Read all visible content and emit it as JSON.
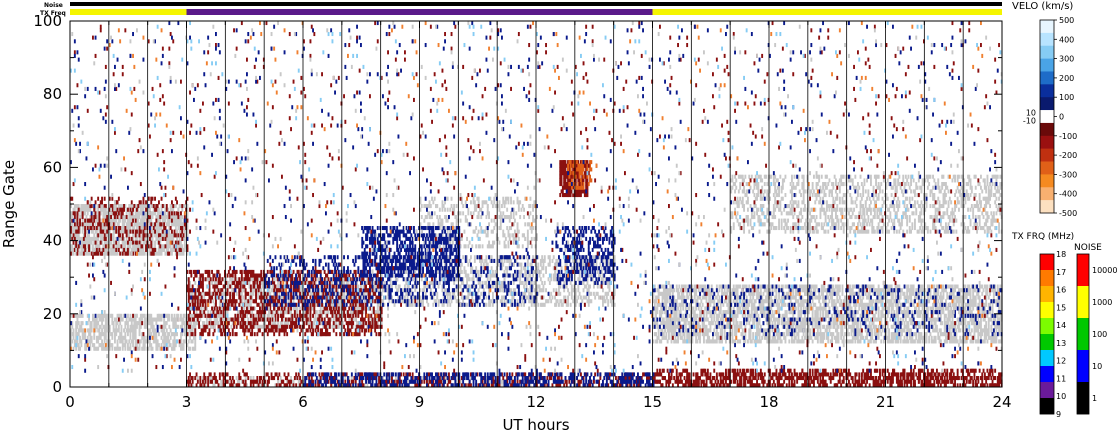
{
  "chart_data": {
    "type": "heatmap",
    "title": "",
    "xlabel": "UT hours",
    "ylabel": "Range Gate",
    "xlim": [
      0,
      24
    ],
    "ylim": [
      0,
      100
    ],
    "x_ticks": [
      "0",
      "3",
      "6",
      "9",
      "12",
      "15",
      "18",
      "21",
      "24"
    ],
    "y_ticks": [
      "0",
      "20",
      "40",
      "60",
      "80",
      "100"
    ],
    "top_strips": {
      "noise_label": "Noise",
      "txfreq_label": "TX Freq",
      "txfreq_segments": [
        {
          "start": 0,
          "end": 3,
          "color": "#f5f500"
        },
        {
          "start": 3,
          "end": 15,
          "color": "#5a1a8a"
        },
        {
          "start": 15,
          "end": 24,
          "color": "#f5f500"
        }
      ]
    },
    "velocity_colorbar": {
      "title": "VELO (km/s)",
      "labels": [
        "500",
        "400",
        "300",
        "200",
        "100",
        "0",
        "-100",
        "-200",
        "-300",
        "-400",
        "-500"
      ],
      "inner_labels": [
        "10",
        "-10"
      ],
      "colors": [
        "#e8f6ff",
        "#b8e4ff",
        "#86ccf4",
        "#4aa4e6",
        "#1e6cc8",
        "#0a2e9c",
        "#0a1a6e",
        "#ffffff",
        "#6a0a0a",
        "#9a1010",
        "#c03010",
        "#e06018",
        "#f58a20",
        "#f8b070",
        "#fce0c0"
      ]
    },
    "txfreq_colorbar": {
      "title": "TX FRQ (MHz)",
      "labels": [
        "18",
        "17",
        "16",
        "15",
        "14",
        "13",
        "12",
        "11",
        "10",
        "9"
      ],
      "colors": [
        "#ff0000",
        "#ff7a00",
        "#ffb400",
        "#ffff00",
        "#7cfc00",
        "#00c800",
        "#00c8ff",
        "#0000ff",
        "#6a1a9a",
        "#000000"
      ]
    },
    "noise_colorbar": {
      "title": "NOISE",
      "labels": [
        "10000",
        "1000",
        "100",
        "10",
        "1"
      ],
      "colors": [
        "#ff0000",
        "#ffff00",
        "#00c800",
        "#0000ff",
        "#000000"
      ]
    },
    "scan_boundaries_hours": [
      1,
      2,
      3,
      4,
      5,
      6,
      7,
      8,
      9,
      10,
      11,
      12,
      13,
      14,
      15,
      16,
      17,
      18,
      19,
      20,
      21,
      22,
      23
    ],
    "echo_regions": [
      {
        "kind": "ground",
        "color": "#c8c8c8",
        "t": [
          0,
          3
        ],
        "gate": [
          36,
          50
        ],
        "density": 0.75
      },
      {
        "kind": "ground",
        "color": "#c8c8c8",
        "t": [
          0,
          3.2
        ],
        "gate": [
          10,
          20
        ],
        "density": 0.6
      },
      {
        "kind": "ground",
        "color": "#c8c8c8",
        "t": [
          3,
          8
        ],
        "gate": [
          16,
          30
        ],
        "density": 0.5
      },
      {
        "kind": "ground",
        "color": "#c8c8c8",
        "t": [
          8,
          14
        ],
        "gate": [
          22,
          36
        ],
        "density": 0.35
      },
      {
        "kind": "ground",
        "color": "#c8c8c8",
        "t": [
          9,
          12
        ],
        "gate": [
          38,
          52
        ],
        "density": 0.3
      },
      {
        "kind": "ground",
        "color": "#c8c8c8",
        "t": [
          15,
          24
        ],
        "gate": [
          12,
          28
        ],
        "density": 0.6
      },
      {
        "kind": "ground",
        "color": "#c8c8c8",
        "t": [
          17,
          24
        ],
        "gate": [
          42,
          58
        ],
        "density": 0.35
      },
      {
        "kind": "ground",
        "color": "#c8c8c8",
        "t": [
          3,
          12
        ],
        "gate": [
          0,
          3
        ],
        "density": 0.25
      },
      {
        "kind": "away",
        "color": "#8b1010",
        "t": [
          0,
          3
        ],
        "gate": [
          36,
          52
        ],
        "density": 0.22
      },
      {
        "kind": "away",
        "color": "#8b1010",
        "t": [
          3,
          8
        ],
        "gate": [
          14,
          32
        ],
        "density": 0.4
      },
      {
        "kind": "away",
        "color": "#8b1010",
        "t": [
          12.6,
          13.3
        ],
        "gate": [
          52,
          62
        ],
        "density": 0.85
      },
      {
        "kind": "away",
        "color": "#e06018",
        "t": [
          12.8,
          13.4
        ],
        "gate": [
          54,
          62
        ],
        "density": 0.35
      },
      {
        "kind": "away",
        "color": "#8b1010",
        "t": [
          3,
          24
        ],
        "gate": [
          0,
          4
        ],
        "density": 0.35
      },
      {
        "kind": "away",
        "color": "#8b1010",
        "t": [
          15,
          24
        ],
        "gate": [
          0,
          5
        ],
        "density": 0.35
      },
      {
        "kind": "toward",
        "color": "#0a1a8c",
        "t": [
          7.5,
          10
        ],
        "gate": [
          30,
          44
        ],
        "density": 0.5
      },
      {
        "kind": "toward",
        "color": "#0a1a8c",
        "t": [
          5,
          12
        ],
        "gate": [
          22,
          36
        ],
        "density": 0.2
      },
      {
        "kind": "toward",
        "color": "#0a1a8c",
        "t": [
          12.5,
          14
        ],
        "gate": [
          28,
          44
        ],
        "density": 0.35
      },
      {
        "kind": "toward",
        "color": "#0a1a8c",
        "t": [
          6,
          15
        ],
        "gate": [
          0,
          4
        ],
        "density": 0.4
      },
      {
        "kind": "toward",
        "color": "#0a1a8c",
        "t": [
          15,
          24
        ],
        "gate": [
          14,
          28
        ],
        "density": 0.08
      },
      {
        "kind": "scatter",
        "color": "#8b1010",
        "t": [
          0,
          24
        ],
        "gate": [
          4,
          100
        ],
        "density": 0.012
      },
      {
        "kind": "scatter",
        "color": "#0a1a8c",
        "t": [
          0,
          24
        ],
        "gate": [
          4,
          100
        ],
        "density": 0.012
      },
      {
        "kind": "scatter",
        "color": "#f08030",
        "t": [
          0,
          24
        ],
        "gate": [
          4,
          100
        ],
        "density": 0.004
      },
      {
        "kind": "scatter",
        "color": "#86ccf4",
        "t": [
          0,
          24
        ],
        "gate": [
          4,
          100
        ],
        "density": 0.006
      },
      {
        "kind": "scatter",
        "color": "#c8c8c8",
        "t": [
          0,
          24
        ],
        "gate": [
          4,
          100
        ],
        "density": 0.008
      }
    ]
  }
}
